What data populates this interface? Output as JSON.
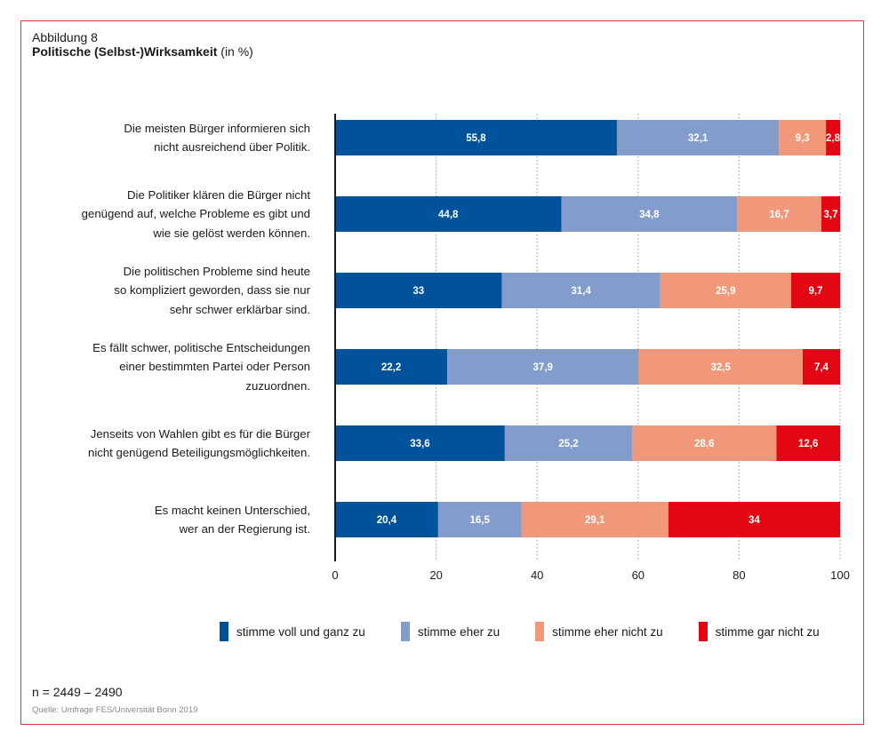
{
  "figure": {
    "label": "Abbildung 8",
    "title_bold": "Politische (Selbst-)Wirksamkeit",
    "title_suffix": " (in %)",
    "n": "n = 2449 – 2490",
    "source": "Quelle: Umfrage FES/Universität Bonn 2019"
  },
  "colors": {
    "voll": "#00539b",
    "eher": "#829dcc",
    "eher_nicht": "#f1977a",
    "gar_nicht": "#e30613",
    "frame": "#e0303a"
  },
  "chart_data": {
    "type": "bar",
    "orientation": "horizontal",
    "stacked": true,
    "title": "Politische (Selbst-)Wirksamkeit (in %)",
    "xlabel": "",
    "ylabel": "",
    "xlim": [
      0,
      100
    ],
    "xticks": [
      0,
      20,
      40,
      60,
      80,
      100
    ],
    "grid": "vertical dotted",
    "legend_position": "bottom",
    "categories": [
      [
        "Die meisten Bürger informieren sich",
        "nicht ausreichend über Politik."
      ],
      [
        "Die Politiker klären die Bürger nicht",
        "genügend auf, welche Probleme es gibt und",
        "wie sie gelöst werden können."
      ],
      [
        "Die politischen Probleme sind heute",
        "so kompliziert geworden, dass sie nur",
        "sehr schwer erklärbar sind."
      ],
      [
        "Es fällt schwer, politische Entscheidungen",
        "einer bestimmten Partei oder Person",
        "zuzuordnen."
      ],
      [
        "Jenseits von Wahlen gibt es für die Bürger",
        "nicht genügend Beteiligungsmöglichkeiten."
      ],
      [
        "Es macht keinen Unterschied,",
        "wer an der Regierung ist."
      ]
    ],
    "series": [
      {
        "name": "stimme voll und ganz zu",
        "color_key": "voll",
        "values": [
          55.8,
          44.8,
          33,
          22.2,
          33.6,
          20.4
        ],
        "labels": [
          "55,8",
          "44,8",
          "33",
          "22,2",
          "33,6",
          "20,4"
        ]
      },
      {
        "name": "stimme eher zu",
        "color_key": "eher",
        "values": [
          32.1,
          34.8,
          31.4,
          37.9,
          25.2,
          16.5
        ],
        "labels": [
          "32,1",
          "34,8",
          "31,4",
          "37,9",
          "25,2",
          "16,5"
        ]
      },
      {
        "name": "stimme eher nicht zu",
        "color_key": "eher_nicht",
        "values": [
          9.3,
          16.7,
          25.9,
          32.5,
          28.6,
          29.1
        ],
        "labels": [
          "9,3",
          "16,7",
          "25,9",
          "32,5",
          "28,6",
          "29,1"
        ]
      },
      {
        "name": "stimme gar nicht zu",
        "color_key": "gar_nicht",
        "values": [
          2.8,
          3.7,
          9.7,
          7.4,
          12.6,
          34
        ],
        "labels": [
          "2,8",
          "3,7",
          "9,7",
          "7,4",
          "12,6",
          "34"
        ]
      }
    ]
  }
}
